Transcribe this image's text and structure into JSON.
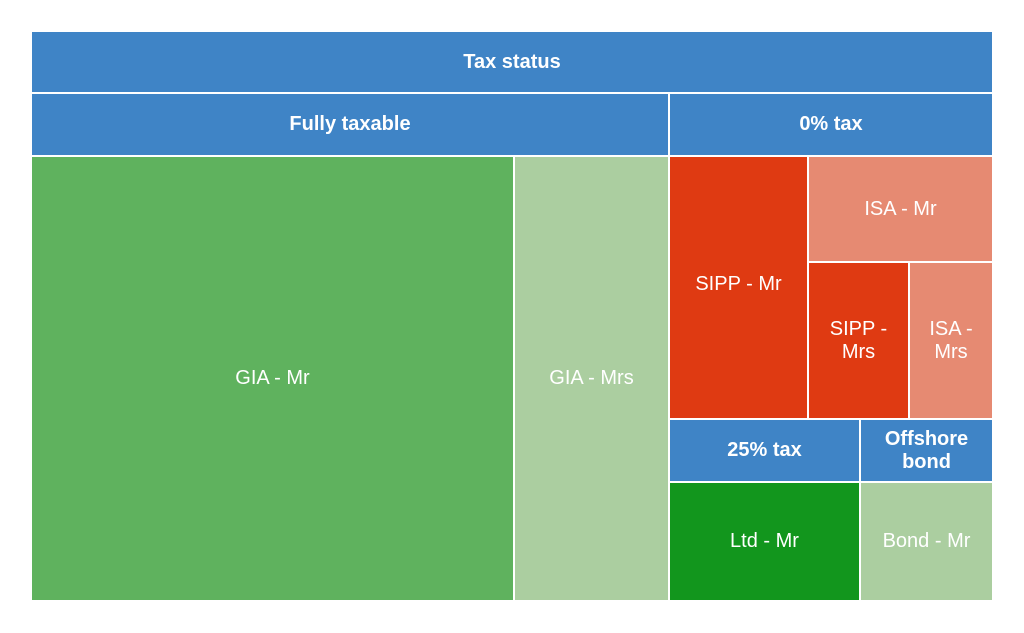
{
  "chart_data": {
    "type": "treemap",
    "title": "",
    "root": {
      "name": "Tax status"
    },
    "groups": [
      {
        "name": "Fully taxable",
        "items": [
          {
            "name": "GIA - Mr",
            "value": 252,
            "color": "#5fb25e"
          },
          {
            "name": "GIA - Mrs",
            "value": 79,
            "color": "#abcea0"
          }
        ]
      },
      {
        "name": "0% tax",
        "items": [
          {
            "name": "SIPP - Mr",
            "value": 35,
            "color": "#df3a12"
          },
          {
            "name": "ISA - Mr",
            "value": 24,
            "color": "#e68a72"
          },
          {
            "name": "SIPP - Mrs",
            "value": 12,
            "color": "#df3a12"
          },
          {
            "name": "ISA - Mrs",
            "value": 10.5,
            "color": "#e68a72"
          }
        ]
      },
      {
        "name": "25% tax",
        "items": [
          {
            "name": "Ltd - Mr",
            "value": 25,
            "color": "#12961d"
          }
        ]
      },
      {
        "name": "Offshore bond",
        "items": [
          {
            "name": "Bond - Mr",
            "value": 17,
            "color": "#abcea0"
          }
        ]
      }
    ],
    "header_color": "#3f84c6"
  }
}
